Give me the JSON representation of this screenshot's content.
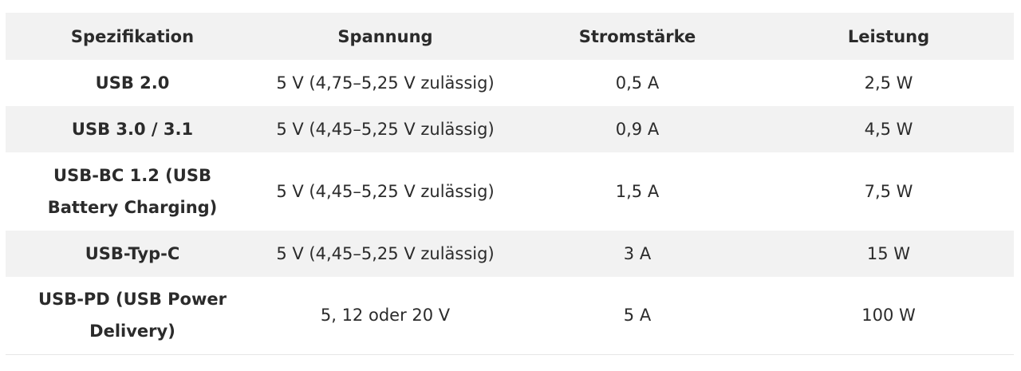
{
  "table": {
    "headers": [
      "Spezifikation",
      "Spannung",
      "Stromstärke",
      "Leistung"
    ],
    "rows": [
      [
        "USB 2.0",
        "5 V (4,75–5,25 V zulässig)",
        "0,5 A",
        "2,5 W"
      ],
      [
        "USB 3.0 / 3.1",
        "5 V (4,45–5,25 V zulässig)",
        "0,9 A",
        "4,5 W"
      ],
      [
        "USB-BC 1.2 (USB Battery Charging)",
        "5 V (4,45–5,25 V zulässig)",
        "1,5 A",
        "7,5 W"
      ],
      [
        "USB-Typ-C",
        "5 V (4,45–5,25 V zulässig)",
        "3 A",
        "15 W"
      ],
      [
        "USB-PD (USB Power Delivery)",
        "5, 12 oder 20 V",
        "5 A",
        "100 W"
      ]
    ]
  },
  "colors": {
    "header_bg": "#f2f2f2",
    "alt_row_bg": "#f2f2f2",
    "text": "#2b2b2b"
  }
}
